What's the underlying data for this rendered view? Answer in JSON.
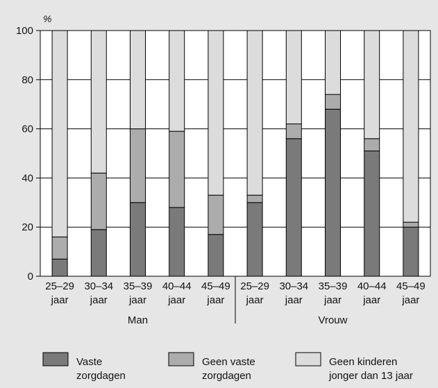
{
  "chart_data": {
    "type": "bar",
    "stacked": true,
    "y_unit_label": "%",
    "ylim": [
      0,
      100
    ],
    "y_ticks": [
      0,
      20,
      40,
      60,
      80,
      100
    ],
    "grid": true,
    "legend_position": "bottom",
    "groups": [
      {
        "label": "Man",
        "categories": [
          "25–29",
          "30–34",
          "35–39",
          "40–44",
          "45–49"
        ]
      },
      {
        "label": "Vrouw",
        "categories": [
          "25–29",
          "30–34",
          "35–39",
          "40–44",
          "45–49"
        ]
      }
    ],
    "category_suffix": "jaar",
    "series": [
      {
        "name": "Vaste\nzorgdagen",
        "color": "#7a7a7a",
        "values": [
          7,
          19,
          30,
          28,
          17,
          30,
          56,
          68,
          51,
          20
        ]
      },
      {
        "name": "Geen vaste\nzorgdagen",
        "color": "#acacac",
        "values": [
          9,
          23,
          30,
          31,
          16,
          3,
          6,
          6,
          5,
          2
        ]
      },
      {
        "name": "Geen kinderen\njonger dan 13 jaar",
        "color": "#dcdcdc",
        "values": [
          84,
          58,
          40,
          41,
          67,
          67,
          38,
          26,
          44,
          78
        ]
      }
    ]
  }
}
